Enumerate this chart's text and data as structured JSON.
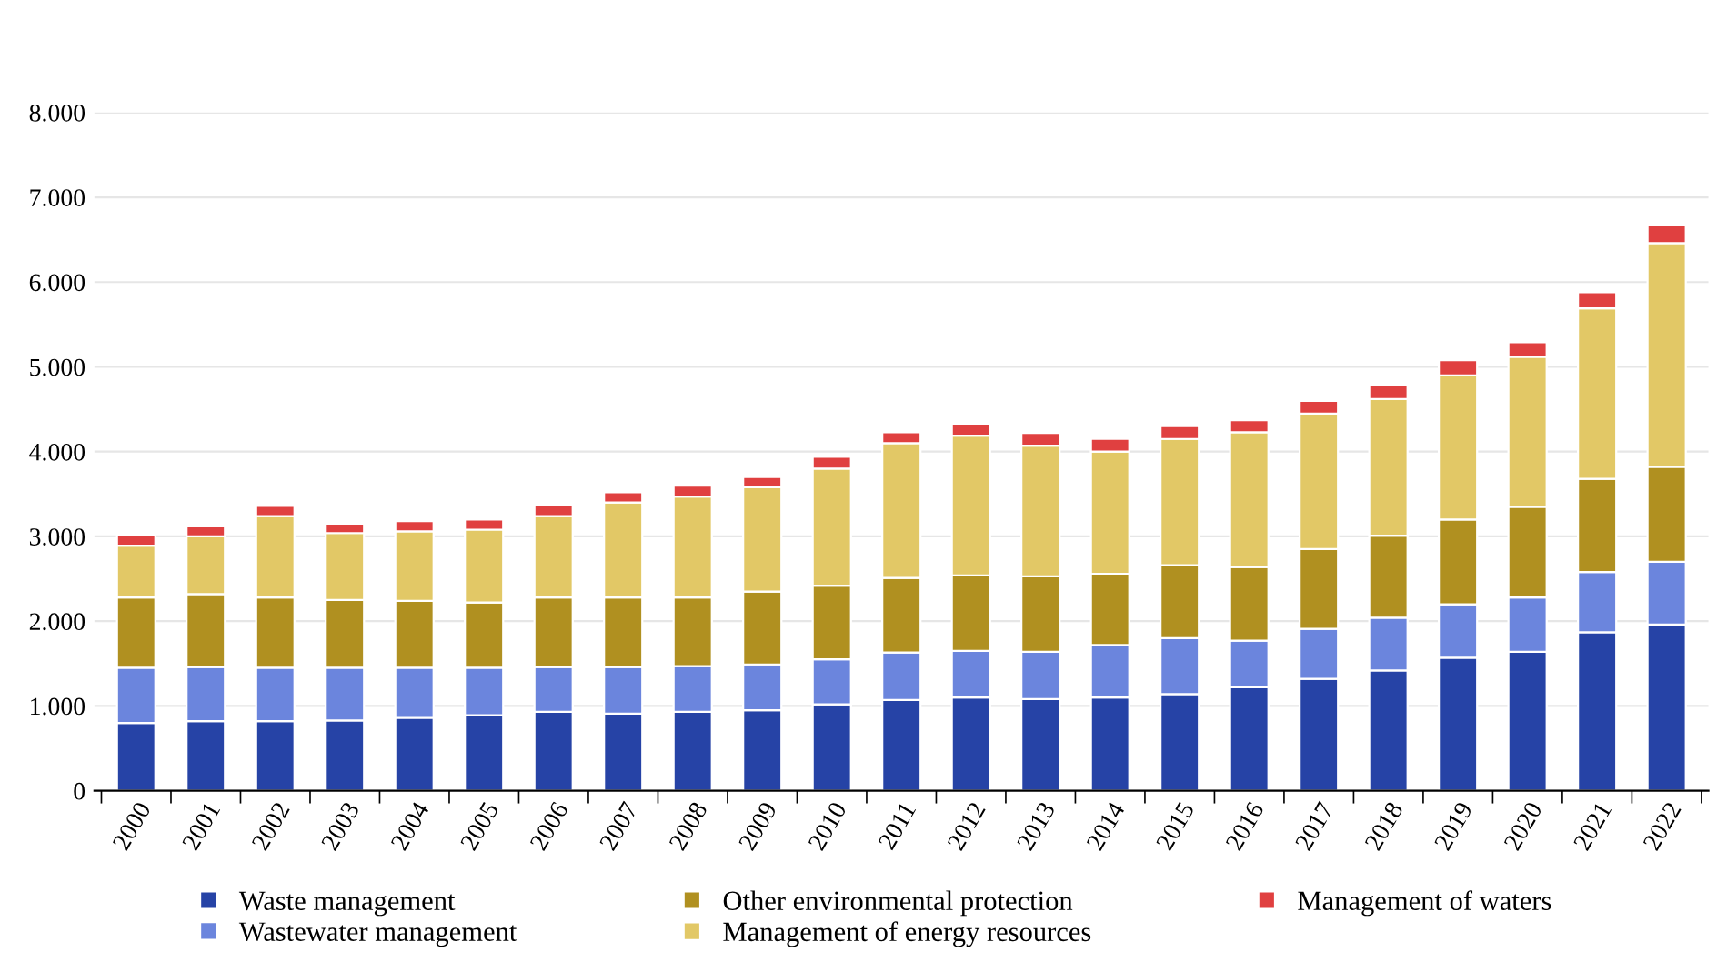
{
  "chart_data": {
    "type": "bar",
    "stacked": true,
    "categories": [
      "2000",
      "2001",
      "2002",
      "2003",
      "2004",
      "2005",
      "2006",
      "2007",
      "2008",
      "2009",
      "2010",
      "2011",
      "2012",
      "2013",
      "2014",
      "2015",
      "2016",
      "2017",
      "2018",
      "2019",
      "2020",
      "2021",
      "2022"
    ],
    "series": [
      {
        "name": "Waste management",
        "color": "#2643a6",
        "values": [
          800,
          820,
          820,
          830,
          860,
          890,
          930,
          910,
          930,
          950,
          1020,
          1070,
          1100,
          1080,
          1100,
          1140,
          1220,
          1320,
          1420,
          1570,
          1640,
          1870,
          1960
        ]
      },
      {
        "name": "Wastewater management",
        "color": "#6b85dd",
        "values": [
          650,
          640,
          630,
          620,
          590,
          560,
          530,
          550,
          540,
          540,
          530,
          560,
          550,
          560,
          620,
          660,
          550,
          590,
          620,
          630,
          640,
          710,
          740
        ]
      },
      {
        "name": "Other environmental protection",
        "color": "#b09020",
        "values": [
          830,
          860,
          830,
          800,
          790,
          770,
          820,
          820,
          810,
          860,
          870,
          880,
          890,
          890,
          840,
          860,
          870,
          940,
          970,
          1000,
          1070,
          1100,
          1120
        ]
      },
      {
        "name": "Management of energy resources",
        "color": "#e2c866",
        "values": [
          610,
          680,
          960,
          790,
          820,
          860,
          960,
          1120,
          1190,
          1230,
          1380,
          1590,
          1650,
          1540,
          1440,
          1490,
          1590,
          1600,
          1610,
          1700,
          1770,
          2010,
          2640
        ]
      },
      {
        "name": "Management of waters",
        "color": "#e04040",
        "values": [
          130,
          120,
          120,
          110,
          120,
          120,
          130,
          120,
          130,
          120,
          140,
          130,
          140,
          150,
          150,
          150,
          140,
          150,
          160,
          180,
          170,
          190,
          210
        ]
      }
    ],
    "ylim": [
      0,
      8000
    ],
    "yticks": [
      0,
      {
        "value": 1000,
        "label": "1.000"
      },
      {
        "value": 2000,
        "label": "2.000"
      },
      {
        "value": 3000,
        "label": "3.000"
      },
      {
        "value": 4000,
        "label": "4.000"
      },
      {
        "value": 5000,
        "label": "5.000"
      },
      {
        "value": 6000,
        "label": "6.000"
      },
      {
        "value": 7000,
        "label": "7.000"
      },
      {
        "value": 8000,
        "label": "8.000"
      }
    ],
    "grid": "y",
    "legend": "bottom"
  }
}
